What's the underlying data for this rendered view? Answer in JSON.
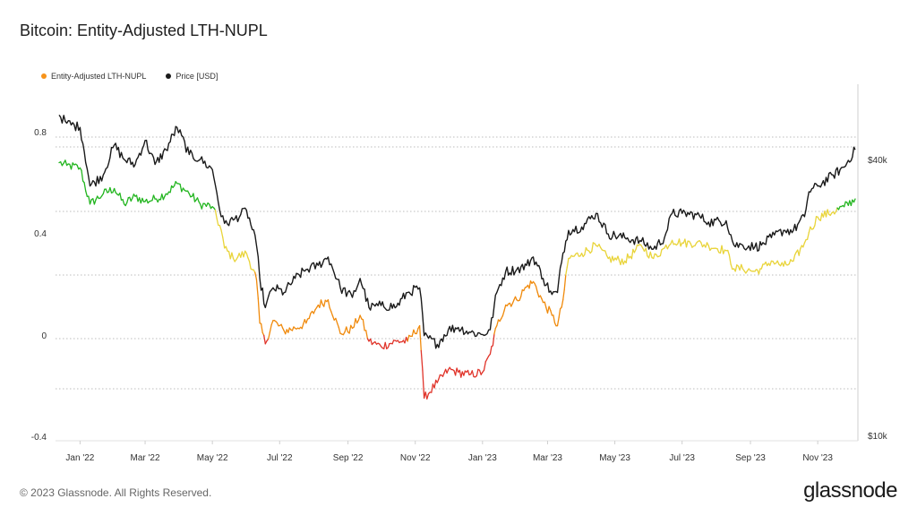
{
  "title": "Bitcoin: Entity-Adjusted LTH-NUPL",
  "footer": "© 2023 Glassnode. All Rights Reserved.",
  "logo": "glassnode",
  "legend": [
    {
      "label": "Entity-Adjusted LTH-NUPL",
      "color": "#f7931a"
    },
    {
      "label": "Price [USD]",
      "color": "#1a1a1a"
    }
  ],
  "colors": {
    "green": "#22b51f",
    "yellow": "#e9d43a",
    "orange": "#f08a0c",
    "red": "#e0342a",
    "price": "#1a1a1a",
    "grid": "#bdbdbd"
  },
  "chart_data": {
    "type": "line",
    "x_ticks": [
      "Jan '22",
      "Mar '22",
      "May '22",
      "Jul '22",
      "Sep '22",
      "Nov '22",
      "Jan '23",
      "Mar '23",
      "May '23",
      "Jul '23",
      "Sep '23",
      "Nov '23"
    ],
    "y_left_ticks": [
      "0.8",
      "0.4",
      "0",
      "-0.4"
    ],
    "y_right_ticks": [
      "$40k",
      "$10k"
    ],
    "y_right_scale": "log",
    "ylim_left": [
      -0.4,
      0.95
    ],
    "grid": "horizontal dotted",
    "legend_position": "top-left",
    "series": [
      {
        "name": "Entity-Adjusted LTH-NUPL",
        "axis": "left",
        "x": [
          "2021-12-13",
          "2021-12-20",
          "2022-01-01",
          "2022-01-10",
          "2022-01-22",
          "2022-02-01",
          "2022-02-10",
          "2022-02-20",
          "2022-03-01",
          "2022-03-10",
          "2022-03-20",
          "2022-03-30",
          "2022-04-10",
          "2022-04-20",
          "2022-05-01",
          "2022-05-09",
          "2022-05-12",
          "2022-05-20",
          "2022-06-01",
          "2022-06-10",
          "2022-06-13",
          "2022-06-18",
          "2022-06-25",
          "2022-07-05",
          "2022-07-15",
          "2022-07-25",
          "2022-08-05",
          "2022-08-14",
          "2022-08-25",
          "2022-09-05",
          "2022-09-12",
          "2022-09-20",
          "2022-10-01",
          "2022-10-15",
          "2022-10-25",
          "2022-11-05",
          "2022-11-09",
          "2022-11-21",
          "2022-12-01",
          "2022-12-10",
          "2022-12-20",
          "2023-01-01",
          "2023-01-08",
          "2023-01-14",
          "2023-01-22",
          "2023-02-01",
          "2023-02-10",
          "2023-02-16",
          "2023-02-25",
          "2023-03-05",
          "2023-03-10",
          "2023-03-15",
          "2023-03-20",
          "2023-04-01",
          "2023-04-14",
          "2023-04-25",
          "2023-05-10",
          "2023-05-25",
          "2023-06-05",
          "2023-06-15",
          "2023-06-22",
          "2023-07-01",
          "2023-07-14",
          "2023-07-25",
          "2023-08-10",
          "2023-08-17",
          "2023-08-25",
          "2023-09-05",
          "2023-09-11",
          "2023-09-20",
          "2023-10-01",
          "2023-10-10",
          "2023-10-20",
          "2023-10-24",
          "2023-11-01",
          "2023-11-15",
          "2023-11-25",
          "2023-12-05"
        ],
        "values": [
          0.68,
          0.67,
          0.66,
          0.52,
          0.56,
          0.58,
          0.52,
          0.55,
          0.53,
          0.54,
          0.56,
          0.6,
          0.56,
          0.52,
          0.51,
          0.42,
          0.35,
          0.31,
          0.33,
          0.23,
          0.06,
          -0.02,
          0.07,
          0.03,
          0.04,
          0.06,
          0.13,
          0.15,
          0.02,
          0.04,
          0.09,
          -0.01,
          -0.03,
          -0.01,
          -0.01,
          0.05,
          -0.23,
          -0.17,
          -0.12,
          -0.13,
          -0.14,
          -0.13,
          -0.06,
          0.05,
          0.13,
          0.15,
          0.2,
          0.22,
          0.14,
          0.09,
          0.05,
          0.15,
          0.31,
          0.33,
          0.36,
          0.31,
          0.3,
          0.36,
          0.31,
          0.35,
          0.38,
          0.37,
          0.37,
          0.36,
          0.34,
          0.27,
          0.27,
          0.26,
          0.27,
          0.3,
          0.28,
          0.3,
          0.37,
          0.41,
          0.47,
          0.49,
          0.51,
          0.54
        ]
      },
      {
        "name": "Price [USD]",
        "axis": "right",
        "x": [
          "2021-12-13",
          "2021-12-20",
          "2022-01-01",
          "2022-01-10",
          "2022-01-22",
          "2022-02-01",
          "2022-02-10",
          "2022-02-20",
          "2022-03-01",
          "2022-03-10",
          "2022-03-20",
          "2022-03-30",
          "2022-04-10",
          "2022-04-20",
          "2022-05-01",
          "2022-05-09",
          "2022-05-12",
          "2022-05-20",
          "2022-06-01",
          "2022-06-10",
          "2022-06-13",
          "2022-06-18",
          "2022-06-25",
          "2022-07-05",
          "2022-07-15",
          "2022-07-25",
          "2022-08-05",
          "2022-08-14",
          "2022-08-25",
          "2022-09-05",
          "2022-09-12",
          "2022-09-20",
          "2022-10-01",
          "2022-10-15",
          "2022-10-25",
          "2022-11-05",
          "2022-11-09",
          "2022-11-21",
          "2022-12-01",
          "2022-12-10",
          "2022-12-20",
          "2023-01-01",
          "2023-01-08",
          "2023-01-14",
          "2023-01-22",
          "2023-02-01",
          "2023-02-10",
          "2023-02-16",
          "2023-02-25",
          "2023-03-05",
          "2023-03-10",
          "2023-03-15",
          "2023-03-20",
          "2023-04-01",
          "2023-04-14",
          "2023-04-25",
          "2023-05-10",
          "2023-05-25",
          "2023-06-05",
          "2023-06-15",
          "2023-06-22",
          "2023-07-01",
          "2023-07-14",
          "2023-07-25",
          "2023-08-10",
          "2023-08-17",
          "2023-08-25",
          "2023-09-05",
          "2023-09-11",
          "2023-09-20",
          "2023-10-01",
          "2023-10-10",
          "2023-10-20",
          "2023-10-24",
          "2023-11-01",
          "2023-11-15",
          "2023-11-25",
          "2023-12-05"
        ],
        "values": [
          50000,
          48000,
          47000,
          35000,
          37000,
          43000,
          40000,
          39000,
          44000,
          39000,
          42000,
          47000,
          41000,
          40000,
          38000,
          30000,
          29000,
          29500,
          31000,
          26000,
          22000,
          19000,
          21000,
          20500,
          22000,
          23000,
          23500,
          24500,
          21000,
          20000,
          22000,
          19000,
          19200,
          19100,
          20500,
          21000,
          16500,
          15800,
          17000,
          17200,
          16800,
          16600,
          17000,
          20500,
          22800,
          23000,
          23500,
          24500,
          22000,
          20300,
          20500,
          25000,
          28000,
          28500,
          30500,
          27500,
          27000,
          26500,
          25500,
          27000,
          30500,
          30500,
          30300,
          29200,
          29400,
          26000,
          26000,
          25800,
          26000,
          27000,
          28000,
          28000,
          30000,
          34000,
          35000,
          37000,
          38500,
          42000
        ]
      }
    ]
  }
}
